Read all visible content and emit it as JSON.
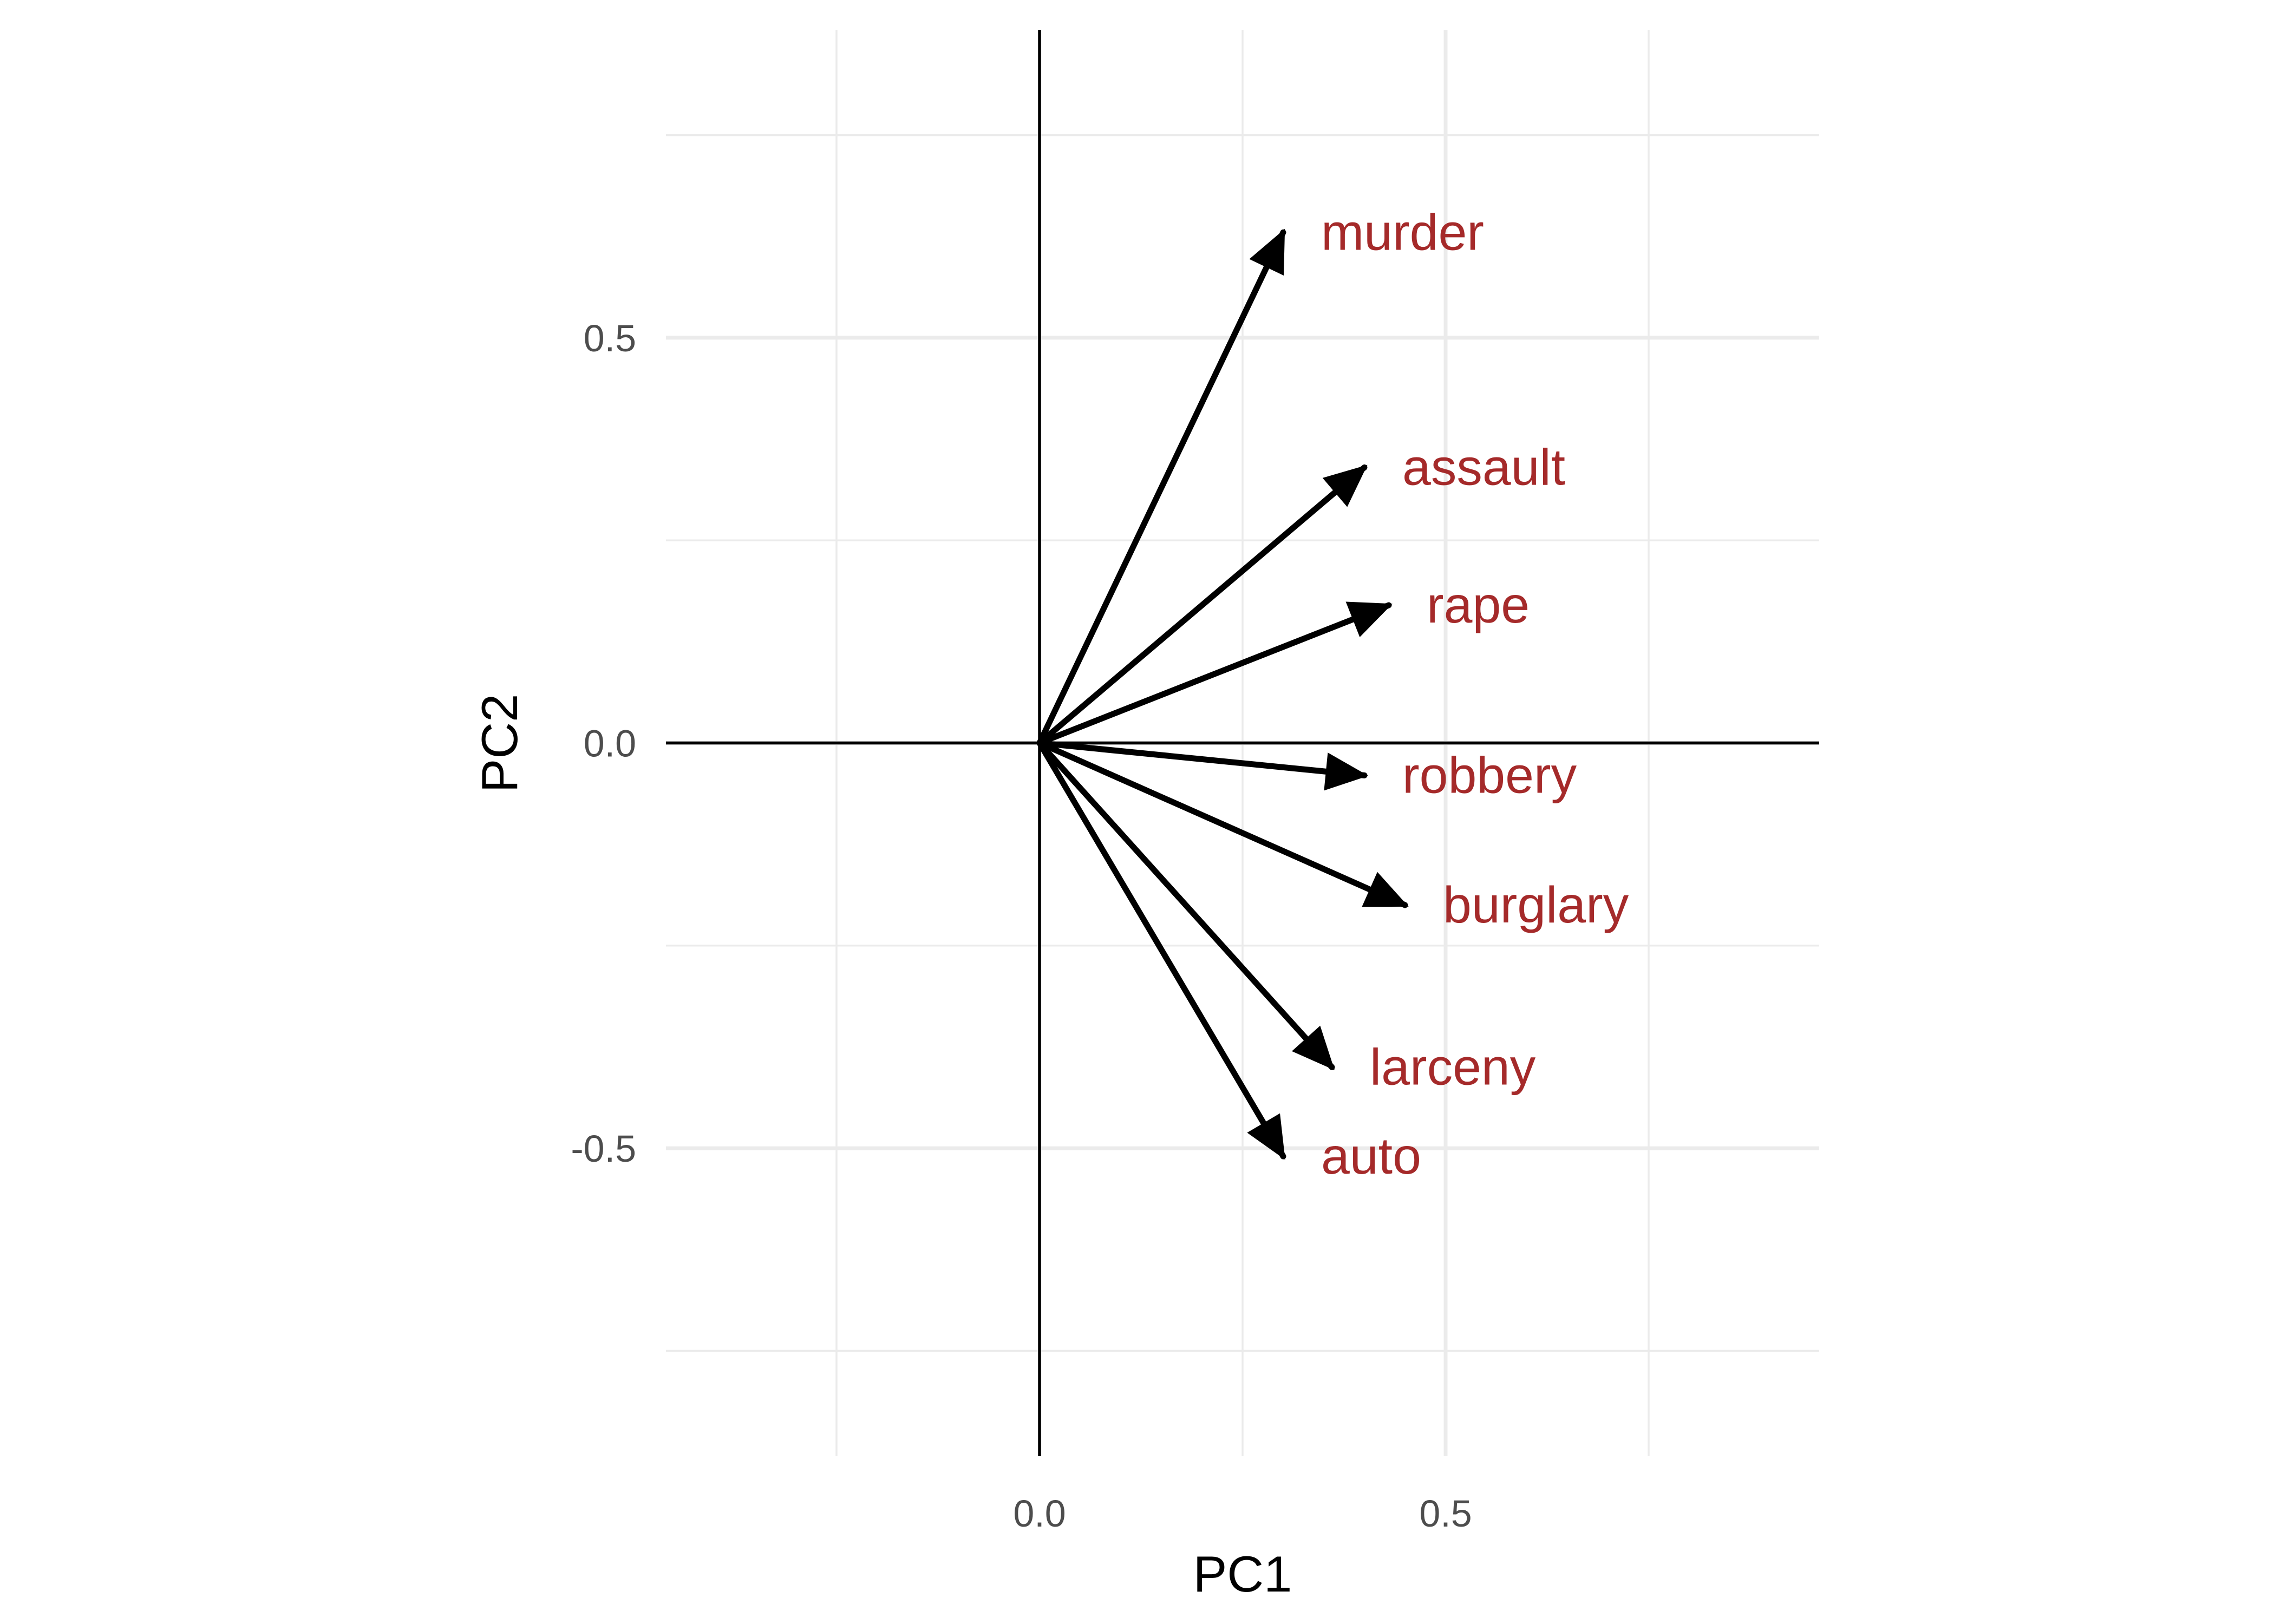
{
  "chart_data": {
    "type": "scatter",
    "subtype": "pca-loadings-biplot",
    "xlabel": "PC1",
    "ylabel": "PC2",
    "xlim": [
      -0.46,
      0.96
    ],
    "ylim": [
      -0.88,
      0.88
    ],
    "x_ticks": [
      {
        "value": 0.0,
        "label": "0.0"
      },
      {
        "value": 0.5,
        "label": "0.5"
      }
    ],
    "y_ticks": [
      {
        "value": 0.5,
        "label": "0.5"
      },
      {
        "value": 0.0,
        "label": "0.0"
      },
      {
        "value": -0.5,
        "label": "-0.5"
      }
    ],
    "x_minor_gridlines": [
      -0.25,
      0.25,
      0.75
    ],
    "y_minor_gridlines": [
      0.75,
      0.25,
      -0.25,
      -0.75
    ],
    "grid": true,
    "reference_lines": {
      "x": 0,
      "y": 0
    },
    "label_color": "#a52a2a",
    "arrow_color": "#000000",
    "vectors": [
      {
        "name": "murder",
        "x": 0.3,
        "y": 0.63
      },
      {
        "name": "assault",
        "x": 0.4,
        "y": 0.34
      },
      {
        "name": "rape",
        "x": 0.43,
        "y": 0.17
      },
      {
        "name": "robbery",
        "x": 0.4,
        "y": -0.04
      },
      {
        "name": "burglary",
        "x": 0.45,
        "y": -0.2
      },
      {
        "name": "larceny",
        "x": 0.36,
        "y": -0.4
      },
      {
        "name": "auto",
        "x": 0.3,
        "y": -0.51
      }
    ]
  }
}
